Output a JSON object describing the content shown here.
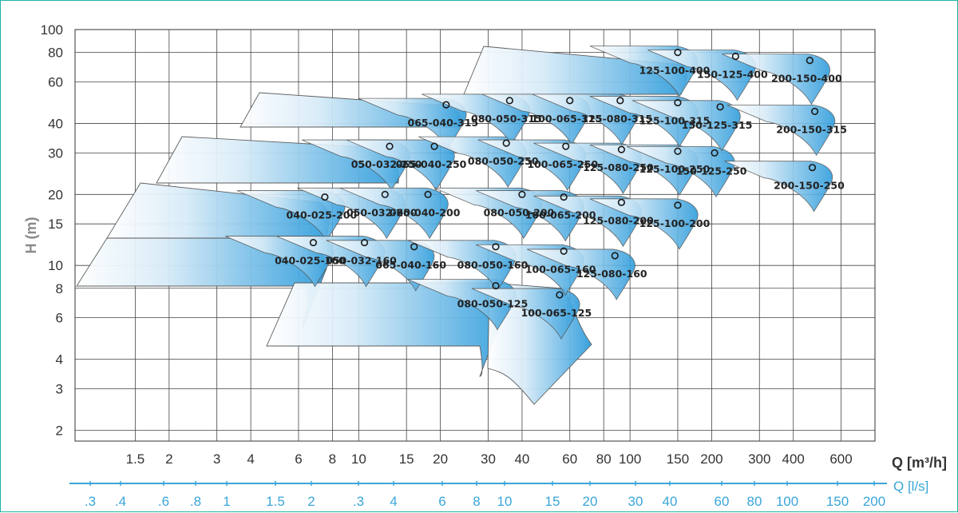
{
  "chart_data": {
    "type": "area",
    "title": "",
    "xlabel": "Q [m³/h]",
    "ylabel": "H (m)",
    "x2label": "Q [l/s]",
    "x_scale": "log",
    "y_scale": "log",
    "xlim": [
      0.9,
      800
    ],
    "ylim": [
      1.8,
      100
    ],
    "grid": true,
    "x_ticks": [
      "1.5",
      "2",
      "3",
      "4",
      "6",
      "8",
      "10",
      "15",
      "20",
      "30",
      "40",
      "60",
      "80",
      "100",
      "150",
      "200",
      "300",
      "400",
      "600"
    ],
    "x2_ticks": [
      ".3",
      ".4",
      ".6",
      ".8",
      "1",
      "1.5",
      "2",
      ".3",
      "4",
      "6",
      "8",
      "10",
      "15",
      "20",
      "30",
      "40",
      "60",
      "80",
      "100",
      "150",
      "200"
    ],
    "y_ticks": [
      "2",
      "3",
      "4",
      "6",
      "8",
      "10",
      "15",
      "20",
      "30",
      "40",
      "60",
      "80",
      "100"
    ],
    "series": [
      {
        "name": "040-025-160",
        "x": 6.8,
        "y": 12.5
      },
      {
        "name": "040-025-200",
        "x": 7.5,
        "y": 19.5
      },
      {
        "name": "050-032-160",
        "x": 10.5,
        "y": 12.5
      },
      {
        "name": "050-032-200",
        "x": 12.5,
        "y": 20
      },
      {
        "name": "050-032-250",
        "x": 13,
        "y": 32
      },
      {
        "name": "065-040-160",
        "x": 16,
        "y": 12
      },
      {
        "name": "065-040-200",
        "x": 18,
        "y": 20
      },
      {
        "name": "065-040-250",
        "x": 19,
        "y": 32
      },
      {
        "name": "065-040-315",
        "x": 21,
        "y": 48
      },
      {
        "name": "080-050-125",
        "x": 32,
        "y": 8.2
      },
      {
        "name": "080-050-160",
        "x": 32,
        "y": 12
      },
      {
        "name": "080-050-200",
        "x": 40,
        "y": 20
      },
      {
        "name": "080-050-250",
        "x": 35,
        "y": 33
      },
      {
        "name": "080-050-315",
        "x": 36,
        "y": 50
      },
      {
        "name": "100-065-125",
        "x": 55,
        "y": 7.5
      },
      {
        "name": "100-065-160",
        "x": 57,
        "y": 11.5
      },
      {
        "name": "100-065-200",
        "x": 57,
        "y": 19.5
      },
      {
        "name": "100-065-250",
        "x": 58,
        "y": 32
      },
      {
        "name": "100-065-315",
        "x": 60,
        "y": 50
      },
      {
        "name": "125-080-160",
        "x": 88,
        "y": 11
      },
      {
        "name": "125-080-200",
        "x": 93,
        "y": 18.5
      },
      {
        "name": "125-080-250",
        "x": 93,
        "y": 31
      },
      {
        "name": "125-080-315",
        "x": 92,
        "y": 50
      },
      {
        "name": "125-100-200",
        "x": 150,
        "y": 18
      },
      {
        "name": "125-100-250",
        "x": 150,
        "y": 30.5
      },
      {
        "name": "125-100-315",
        "x": 150,
        "y": 49
      },
      {
        "name": "125-100-400",
        "x": 150,
        "y": 80
      },
      {
        "name": "150-125-250",
        "x": 205,
        "y": 30
      },
      {
        "name": "150-125-315",
        "x": 215,
        "y": 47
      },
      {
        "name": "150-125-400",
        "x": 245,
        "y": 77
      },
      {
        "name": "200-150-250",
        "x": 470,
        "y": 26
      },
      {
        "name": "200-150-315",
        "x": 480,
        "y": 45
      },
      {
        "name": "200-150-400",
        "x": 460,
        "y": 74
      }
    ]
  }
}
